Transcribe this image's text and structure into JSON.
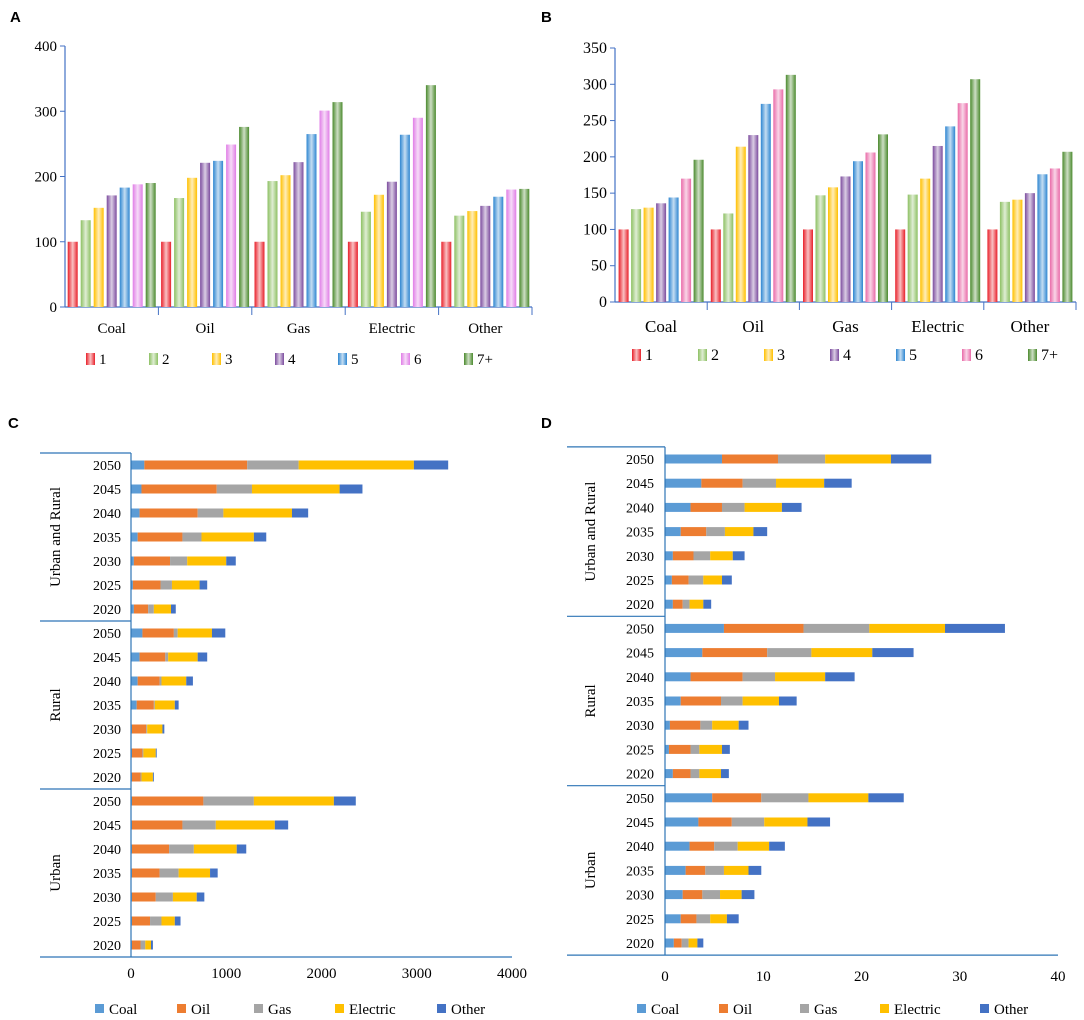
{
  "chart_data": [
    {
      "panel": "A",
      "type": "bar",
      "categories": [
        "Coal",
        "Oil",
        "Gas",
        "Electric",
        "Other"
      ],
      "series": [
        {
          "name": "1",
          "values": [
            100,
            100,
            100,
            100,
            100
          ]
        },
        {
          "name": "2",
          "values": [
            133,
            167,
            193,
            146,
            140
          ]
        },
        {
          "name": "3",
          "values": [
            152,
            198,
            202,
            172,
            147
          ]
        },
        {
          "name": "4",
          "values": [
            171,
            221,
            222,
            192,
            155
          ]
        },
        {
          "name": "5",
          "values": [
            183,
            224,
            265,
            264,
            169
          ]
        },
        {
          "name": "6",
          "values": [
            188,
            249,
            301,
            290,
            180
          ]
        },
        {
          "name": "7+",
          "values": [
            190,
            276,
            314,
            340,
            181
          ]
        }
      ],
      "ylim": [
        0,
        400
      ],
      "yticks": [
        0,
        100,
        200,
        300,
        400
      ],
      "colors": [
        "#e8202a",
        "#8dc063",
        "#ffc000",
        "#7c4c9e",
        "#2e86d1",
        "#e07de6",
        "#4b8a2e"
      ],
      "legend_position": "bottom"
    },
    {
      "panel": "B",
      "type": "bar",
      "categories": [
        "Coal",
        "Oil",
        "Gas",
        "Electric",
        "Other"
      ],
      "series": [
        {
          "name": "1",
          "values": [
            100,
            100,
            100,
            100,
            100
          ]
        },
        {
          "name": "2",
          "values": [
            128,
            122,
            147,
            148,
            138
          ]
        },
        {
          "name": "3",
          "values": [
            130,
            214,
            158,
            170,
            141
          ]
        },
        {
          "name": "4",
          "values": [
            136,
            230,
            173,
            215,
            150
          ]
        },
        {
          "name": "5",
          "values": [
            144,
            273,
            194,
            242,
            176
          ]
        },
        {
          "name": "6",
          "values": [
            170,
            293,
            206,
            274,
            184
          ]
        },
        {
          "name": "7+",
          "values": [
            196,
            313,
            231,
            307,
            207
          ]
        }
      ],
      "ylim": [
        0,
        350
      ],
      "yticks": [
        0,
        50,
        100,
        150,
        200,
        250,
        300,
        350
      ],
      "colors": [
        "#e8202a",
        "#8dc063",
        "#ffc000",
        "#7c4c9e",
        "#2e86d1",
        "#e96aa8",
        "#4b8a2e"
      ],
      "legend_position": "bottom"
    },
    {
      "panel": "C",
      "type": "bar",
      "orientation": "horizontal",
      "stacked": true,
      "groups": [
        {
          "label": "Urban and Rural",
          "years": [
            "2050",
            "2045",
            "2040",
            "2035",
            "2030",
            "2025",
            "2020"
          ]
        },
        {
          "label": "Rural",
          "years": [
            "2050",
            "2045",
            "2040",
            "2035",
            "2030",
            "2025",
            "2020"
          ]
        },
        {
          "label": "Urban",
          "years": [
            "2050",
            "2045",
            "2040",
            "2035",
            "2030",
            "2025",
            "2020"
          ]
        }
      ],
      "series": [
        {
          "name": "Coal",
          "values": [
            140,
            110,
            90,
            70,
            30,
            20,
            30,
            120,
            90,
            70,
            60,
            10,
            10,
            10,
            10,
            10,
            10,
            10,
            10,
            10,
            10
          ]
        },
        {
          "name": "Oil",
          "values": [
            1080,
            790,
            610,
            470,
            380,
            290,
            150,
            330,
            270,
            230,
            180,
            150,
            110,
            90,
            750,
            530,
            390,
            290,
            250,
            190,
            90
          ]
        },
        {
          "name": "Gas",
          "values": [
            540,
            370,
            270,
            200,
            180,
            120,
            60,
            40,
            30,
            20,
            10,
            10,
            10,
            10,
            530,
            350,
            260,
            200,
            180,
            120,
            50
          ]
        },
        {
          "name": "Electric",
          "values": [
            1210,
            920,
            720,
            550,
            410,
            290,
            180,
            360,
            310,
            260,
            210,
            160,
            130,
            120,
            840,
            620,
            450,
            330,
            250,
            140,
            60
          ]
        },
        {
          "name": "Other",
          "values": [
            360,
            240,
            170,
            130,
            100,
            80,
            50,
            140,
            100,
            70,
            40,
            20,
            10,
            10,
            230,
            140,
            100,
            80,
            80,
            60,
            20
          ]
        }
      ],
      "xlim": [
        0,
        4000
      ],
      "xticks": [
        0,
        1000,
        2000,
        3000,
        4000
      ],
      "colors": [
        "#5b9bd5",
        "#ed7d31",
        "#a5a5a5",
        "#ffc000",
        "#4472c4"
      ],
      "legend_position": "bottom"
    },
    {
      "panel": "D",
      "type": "bar",
      "orientation": "horizontal",
      "stacked": true,
      "groups": [
        {
          "label": "Urban and Rural",
          "years": [
            "2050",
            "2045",
            "2040",
            "2035",
            "2030",
            "2025",
            "2020"
          ]
        },
        {
          "label": "Rural",
          "years": [
            "2050",
            "2045",
            "2040",
            "2035",
            "2030",
            "2025",
            "2020"
          ]
        },
        {
          "label": "Urban",
          "years": [
            "2050",
            "2045",
            "2040",
            "2035",
            "2030",
            "2025",
            "2020"
          ]
        }
      ],
      "series": [
        {
          "name": "Coal",
          "values": [
            5.8,
            3.7,
            2.6,
            1.6,
            0.8,
            0.7,
            0.8,
            6.0,
            3.8,
            2.6,
            1.6,
            0.5,
            0.4,
            0.8,
            4.8,
            3.4,
            2.5,
            2.1,
            1.8,
            1.6,
            0.9
          ]
        },
        {
          "name": "Oil",
          "values": [
            5.7,
            4.2,
            3.2,
            2.6,
            2.1,
            1.7,
            1.0,
            8.1,
            6.6,
            5.3,
            4.1,
            3.1,
            2.2,
            1.8,
            5.0,
            3.4,
            2.5,
            2.0,
            2.0,
            1.6,
            0.8
          ]
        },
        {
          "name": "Gas",
          "values": [
            4.8,
            3.4,
            2.3,
            1.9,
            1.7,
            1.5,
            0.7,
            6.7,
            4.5,
            3.3,
            2.2,
            1.2,
            0.9,
            0.9,
            4.8,
            3.3,
            2.4,
            1.9,
            1.8,
            1.4,
            0.7
          ]
        },
        {
          "name": "Electric",
          "values": [
            6.7,
            4.9,
            3.8,
            2.9,
            2.3,
            1.9,
            1.4,
            7.7,
            6.2,
            5.1,
            3.7,
            2.7,
            2.3,
            2.2,
            6.1,
            4.4,
            3.2,
            2.5,
            2.2,
            1.7,
            0.9
          ]
        },
        {
          "name": "Other",
          "values": [
            4.1,
            2.8,
            2.0,
            1.4,
            1.2,
            1.0,
            0.8,
            6.1,
            4.2,
            3.0,
            1.8,
            1.0,
            0.8,
            0.8,
            3.6,
            2.3,
            1.6,
            1.3,
            1.3,
            1.2,
            0.6
          ]
        }
      ],
      "xlim": [
        0,
        40
      ],
      "xticks": [
        0,
        10,
        20,
        30,
        40
      ],
      "colors": [
        "#5b9bd5",
        "#ed7d31",
        "#a5a5a5",
        "#ffc000",
        "#4472c4"
      ],
      "legend_position": "bottom"
    }
  ]
}
